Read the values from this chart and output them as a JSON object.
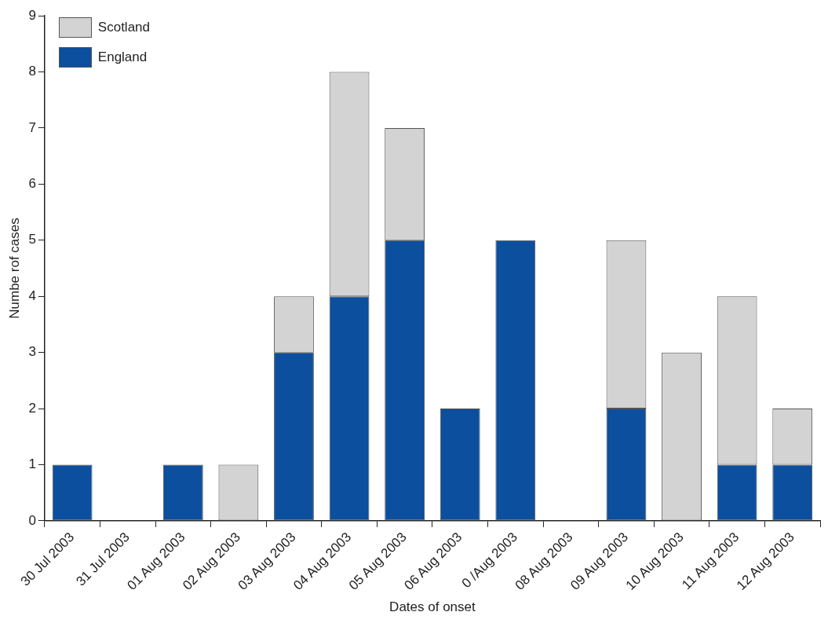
{
  "chart_data": {
    "type": "bar",
    "stacked": true,
    "xlabel": "Dates of onset",
    "ylabel": "Numbe rof cases",
    "categories": [
      "30 Jul 2003",
      "31 Jul 2003",
      "01 Aug 2003",
      "02 Aug 2003",
      "03 Aug 2003",
      "04 Aug 2003",
      "05 Aug 2003",
      "06 Aug 2003",
      "0 /Aug 2003",
      "08 Aug 2003",
      "09 Aug 2003",
      "10 Aug 2003",
      "11 Aug 2003",
      "12 Aug 2003"
    ],
    "series": [
      {
        "name": "England",
        "color": "#0b4f9e",
        "values": [
          1,
          0,
          1,
          0,
          3,
          4,
          5,
          2,
          5,
          0,
          2,
          0,
          1,
          1
        ]
      },
      {
        "name": "Scotland",
        "color": "#d3d3d3",
        "values": [
          0,
          0,
          0,
          1,
          1,
          4,
          2,
          0,
          0,
          0,
          3,
          3,
          3,
          1
        ]
      }
    ],
    "ylim": [
      0,
      9
    ],
    "yticks": [
      0,
      1,
      2,
      3,
      4,
      5,
      6,
      7,
      8,
      9
    ],
    "grid": false,
    "legend": "top left"
  }
}
